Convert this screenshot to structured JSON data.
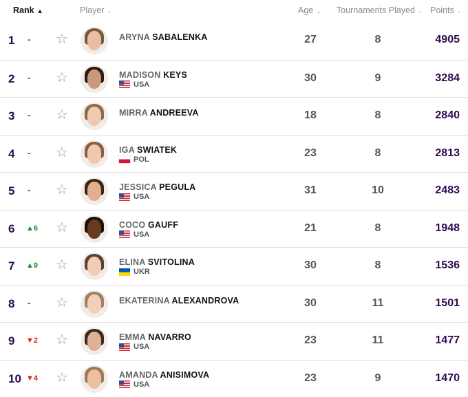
{
  "header": {
    "rank": "Rank",
    "rank_sort": "▲",
    "player": "Player",
    "age": "Age",
    "tournaments": "Tournaments Played",
    "points": "Points",
    "chevron": "⌄"
  },
  "colors": {
    "rank": "#2d0a4e",
    "up": "#1e8a2e",
    "down": "#e01b1b"
  },
  "rows": [
    {
      "rank": "1",
      "move": "-",
      "dir": "same",
      "first": "ARYNA",
      "last": "SABALENKA",
      "country": "",
      "age": "27",
      "tournaments": "8",
      "points": "4905",
      "skin": "#e8bfa5",
      "hair": "#7a5a3a"
    },
    {
      "rank": "2",
      "move": "-",
      "dir": "same",
      "first": "MADISON",
      "last": "KEYS",
      "country": "USA",
      "age": "30",
      "tournaments": "9",
      "points": "3284",
      "skin": "#c99a7a",
      "hair": "#2a1a10"
    },
    {
      "rank": "3",
      "move": "-",
      "dir": "same",
      "first": "MIRRA",
      "last": "ANDREEVA",
      "country": "",
      "age": "18",
      "tournaments": "8",
      "points": "2840",
      "skin": "#f0c9b0",
      "hair": "#8a6a4a"
    },
    {
      "rank": "4",
      "move": "-",
      "dir": "same",
      "first": "IGA",
      "last": "SWIATEK",
      "country": "POL",
      "age": "23",
      "tournaments": "8",
      "points": "2813",
      "skin": "#f0c8b0",
      "hair": "#8a6040"
    },
    {
      "rank": "5",
      "move": "-",
      "dir": "same",
      "first": "JESSICA",
      "last": "PEGULA",
      "country": "USA",
      "age": "31",
      "tournaments": "10",
      "points": "2483",
      "skin": "#e0b090",
      "hair": "#3a2515"
    },
    {
      "rank": "6",
      "move": "▲6",
      "dir": "up",
      "first": "COCO",
      "last": "GAUFF",
      "country": "USA",
      "age": "21",
      "tournaments": "8",
      "points": "1948",
      "skin": "#6a3a20",
      "hair": "#1a0f08"
    },
    {
      "rank": "7",
      "move": "▲9",
      "dir": "up",
      "first": "ELINA",
      "last": "SVITOLINA",
      "country": "UKR",
      "age": "30",
      "tournaments": "8",
      "points": "1536",
      "skin": "#f2ccb5",
      "hair": "#5a4030"
    },
    {
      "rank": "8",
      "move": "-",
      "dir": "same",
      "first": "EKATERINA",
      "last": "ALEXANDROVA",
      "country": "",
      "age": "30",
      "tournaments": "11",
      "points": "1501",
      "skin": "#f2d0bb",
      "hair": "#a08060"
    },
    {
      "rank": "9",
      "move": "▼2",
      "dir": "down",
      "first": "EMMA",
      "last": "NAVARRO",
      "country": "USA",
      "age": "23",
      "tournaments": "11",
      "points": "1477",
      "skin": "#e0b095",
      "hair": "#3a2a1a"
    },
    {
      "rank": "10",
      "move": "▼4",
      "dir": "down",
      "first": "AMANDA",
      "last": "ANISIMOVA",
      "country": "USA",
      "age": "23",
      "tournaments": "9",
      "points": "1470",
      "skin": "#eec0a0",
      "hair": "#a07a50"
    }
  ]
}
